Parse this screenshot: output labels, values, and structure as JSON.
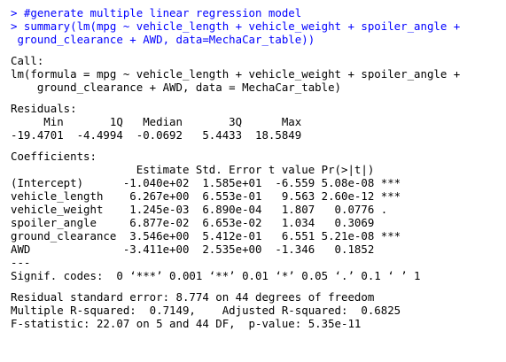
{
  "console": {
    "input": [
      "> #generate multiple linear regression model",
      "> summary(lm(mpg ~ vehicle_length + vehicle_weight + spoiler_angle +",
      " ground_clearance + AWD, data=MechaCar_table))"
    ],
    "call": [
      "Call:",
      "lm(formula = mpg ~ vehicle_length + vehicle_weight + spoiler_angle +",
      "    ground_clearance + AWD, data = MechaCar_table)"
    ],
    "residuals": [
      "Residuals:",
      "     Min       1Q   Median       3Q      Max ",
      "-19.4701  -4.4994  -0.0692   5.4433  18.5849 "
    ],
    "coefficients": [
      "Coefficients:",
      "                   Estimate Std. Error t value Pr(>|t|)    ",
      "(Intercept)      -1.040e+02  1.585e+01  -6.559 5.08e-08 ***",
      "vehicle_length    6.267e+00  6.553e-01   9.563 2.60e-12 ***",
      "vehicle_weight    1.245e-03  6.890e-04   1.807   0.0776 .  ",
      "spoiler_angle     6.877e-02  6.653e-02   1.034   0.3069    ",
      "ground_clearance  3.546e+00  5.412e-01   6.551 5.21e-08 ***",
      "AWD              -3.411e+00  2.535e+00  -1.346   0.1852    ",
      "---",
      "Signif. codes:  0 ‘***’ 0.001 ‘**’ 0.01 ‘*’ 0.05 ‘.’ 0.1 ‘ ’ 1"
    ],
    "summary": [
      "Residual standard error: 8.774 on 44 degrees of freedom",
      "Multiple R-squared:  0.7149,\tAdjusted R-squared:  0.6825 ",
      "F-statistic: 22.07 on 5 and 44 DF,  p-value: 5.35e-11"
    ]
  },
  "colors": {
    "command": "#0000ff",
    "output": "#000000",
    "background": "#ffffff"
  }
}
